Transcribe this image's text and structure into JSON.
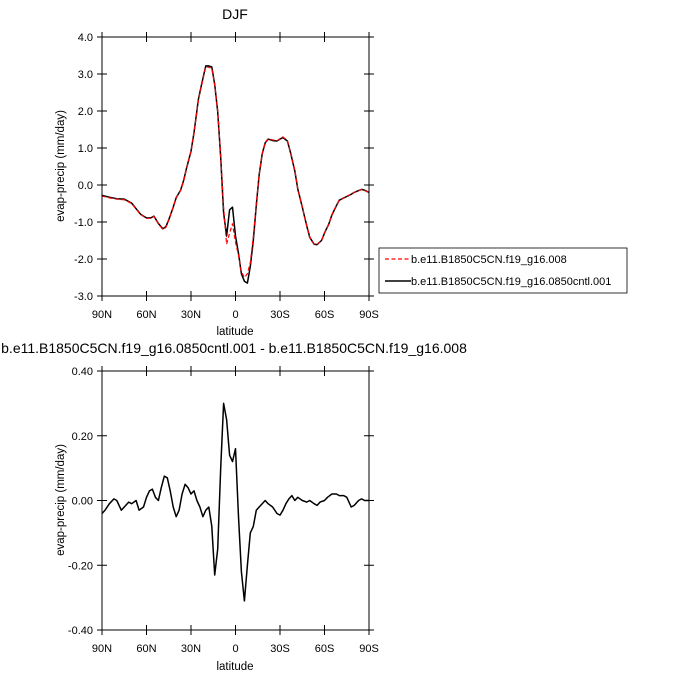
{
  "chart_data": [
    {
      "type": "line",
      "title": "DJF",
      "xlabel": "latitude",
      "ylabel": "evap-precip (mm/day)",
      "xlim": [
        90,
        -90
      ],
      "ylim": [
        -3.0,
        4.0
      ],
      "xticks": [
        90,
        60,
        30,
        0,
        -30,
        -60,
        -90
      ],
      "xtick_labels": [
        "90N",
        "60N",
        "30N",
        "0",
        "30S",
        "60S",
        "90S"
      ],
      "yticks": [
        -3.0,
        -2.0,
        -1.0,
        0.0,
        1.0,
        2.0,
        3.0,
        4.0
      ],
      "ytick_labels": [
        "-3.0",
        "-2.0",
        "-1.0",
        "0.0",
        "1.0",
        "2.0",
        "3.0",
        "4.0"
      ],
      "legend_position": "right",
      "series": [
        {
          "name": "b.e11.B1850C5CN.f19_g16.008",
          "color": "#ff0000",
          "dash": "dashed",
          "x": [
            90,
            85,
            80,
            75,
            70,
            67,
            64,
            62,
            60,
            57,
            55,
            52,
            49,
            47,
            45,
            42,
            40,
            37,
            35,
            33,
            30,
            28,
            25,
            22,
            20,
            18,
            16,
            14,
            12,
            10,
            8,
            6,
            4,
            2,
            0,
            -2,
            -4,
            -6,
            -8,
            -10,
            -12,
            -14,
            -16,
            -18,
            -20,
            -22,
            -25,
            -28,
            -30,
            -32,
            -35,
            -37,
            -40,
            -42,
            -45,
            -48,
            -50,
            -53,
            -55,
            -58,
            -60,
            -63,
            -65,
            -68,
            -70,
            -73,
            -75,
            -78,
            -80,
            -83,
            -85,
            -87,
            -90
          ],
          "y": [
            -0.3,
            -0.35,
            -0.38,
            -0.4,
            -0.5,
            -0.65,
            -0.8,
            -0.85,
            -0.9,
            -0.9,
            -0.85,
            -1.05,
            -1.2,
            -1.15,
            -0.95,
            -0.6,
            -0.35,
            -0.15,
            0.1,
            0.45,
            0.9,
            1.4,
            2.3,
            2.85,
            3.2,
            3.18,
            3.15,
            2.7,
            2.0,
            0.8,
            -0.6,
            -1.6,
            -1.3,
            -1.05,
            -1.55,
            -1.9,
            -2.35,
            -2.5,
            -2.4,
            -2.1,
            -1.4,
            -0.5,
            0.3,
            0.85,
            1.15,
            1.25,
            1.22,
            1.2,
            1.25,
            1.3,
            1.2,
            0.9,
            0.4,
            -0.1,
            -0.6,
            -1.1,
            -1.4,
            -1.6,
            -1.6,
            -1.5,
            -1.3,
            -1.05,
            -0.8,
            -0.55,
            -0.4,
            -0.35,
            -0.3,
            -0.25,
            -0.2,
            -0.15,
            -0.12,
            -0.15,
            -0.2
          ]
        },
        {
          "name": "b.e11.B1850C5CN.f19_g16.0850cntl.001",
          "color": "#000000",
          "dash": "solid",
          "x": [
            90,
            85,
            80,
            75,
            70,
            67,
            64,
            62,
            60,
            57,
            55,
            52,
            49,
            47,
            45,
            42,
            40,
            37,
            35,
            33,
            30,
            28,
            25,
            22,
            20,
            18,
            16,
            14,
            12,
            10,
            8,
            6,
            4,
            2,
            0,
            -2,
            -4,
            -6,
            -8,
            -10,
            -12,
            -14,
            -16,
            -18,
            -20,
            -22,
            -25,
            -28,
            -30,
            -32,
            -35,
            -37,
            -40,
            -42,
            -45,
            -48,
            -50,
            -53,
            -55,
            -58,
            -60,
            -63,
            -65,
            -68,
            -70,
            -73,
            -75,
            -78,
            -80,
            -83,
            -85,
            -87,
            -90
          ],
          "y": [
            -0.28,
            -0.33,
            -0.37,
            -0.38,
            -0.49,
            -0.64,
            -0.79,
            -0.84,
            -0.89,
            -0.89,
            -0.84,
            -1.04,
            -1.18,
            -1.13,
            -0.94,
            -0.6,
            -0.34,
            -0.14,
            0.12,
            0.46,
            0.91,
            1.41,
            2.32,
            2.88,
            3.22,
            3.22,
            3.19,
            2.72,
            1.98,
            0.75,
            -0.75,
            -1.38,
            -0.67,
            -0.6,
            -1.38,
            -1.85,
            -2.4,
            -2.6,
            -2.65,
            -2.2,
            -1.5,
            -0.55,
            0.28,
            0.84,
            1.14,
            1.24,
            1.2,
            1.19,
            1.24,
            1.28,
            1.19,
            0.89,
            0.38,
            -0.11,
            -0.6,
            -1.1,
            -1.41,
            -1.6,
            -1.61,
            -1.5,
            -1.3,
            -1.05,
            -0.81,
            -0.56,
            -0.41,
            -0.35,
            -0.31,
            -0.25,
            -0.2,
            -0.15,
            -0.12,
            -0.14,
            -0.2
          ]
        }
      ]
    },
    {
      "type": "line",
      "title": "b.e11.B1850C5CN.f19_g16.0850cntl.001 - b.e11.B1850C5CN.f19_g16.008",
      "xlabel": "latitude",
      "ylabel": "evap-precip (mm/day)",
      "xlim": [
        90,
        -90
      ],
      "ylim": [
        -0.4,
        0.4
      ],
      "xticks": [
        90,
        60,
        30,
        0,
        -30,
        -60,
        -90
      ],
      "xtick_labels": [
        "90N",
        "60N",
        "30N",
        "0",
        "30S",
        "60S",
        "90S"
      ],
      "yticks": [
        -0.4,
        -0.2,
        0.0,
        0.2,
        0.4
      ],
      "ytick_labels": [
        "-0.40",
        "-0.20",
        "0.00",
        "0.20",
        "0.40"
      ],
      "series": [
        {
          "color": "#000000",
          "dash": "solid",
          "x": [
            90,
            88,
            85,
            82,
            80,
            77,
            75,
            72,
            70,
            67,
            65,
            62,
            60,
            58,
            56,
            54,
            52,
            50,
            48,
            46,
            44,
            42,
            40,
            38,
            36,
            34,
            32,
            30,
            28,
            26,
            24,
            22,
            20,
            18,
            16,
            14,
            12,
            10,
            8,
            6,
            4,
            2,
            0,
            -2,
            -4,
            -6,
            -8,
            -10,
            -12,
            -14,
            -16,
            -18,
            -20,
            -22,
            -25,
            -28,
            -30,
            -32,
            -34,
            -36,
            -38,
            -40,
            -42,
            -45,
            -48,
            -50,
            -53,
            -55,
            -57,
            -60,
            -62,
            -65,
            -68,
            -70,
            -73,
            -75,
            -78,
            -80,
            -83,
            -85,
            -87,
            -90
          ],
          "y": [
            -0.04,
            -0.03,
            -0.01,
            0.005,
            0.0,
            -0.03,
            -0.02,
            -0.005,
            -0.01,
            0.0,
            -0.03,
            -0.02,
            0.01,
            0.03,
            0.035,
            0.01,
            0.0,
            0.04,
            0.075,
            0.07,
            0.03,
            -0.02,
            -0.05,
            -0.03,
            0.02,
            0.05,
            0.04,
            0.02,
            0.03,
            0.0,
            -0.02,
            -0.05,
            -0.03,
            -0.02,
            -0.08,
            -0.23,
            -0.15,
            0.1,
            0.3,
            0.25,
            0.14,
            0.12,
            0.16,
            -0.05,
            -0.22,
            -0.31,
            -0.2,
            -0.1,
            -0.08,
            -0.03,
            -0.02,
            -0.01,
            0.0,
            -0.01,
            -0.02,
            -0.04,
            -0.045,
            -0.03,
            -0.01,
            0.005,
            0.015,
            0.0,
            0.01,
            0.0,
            -0.005,
            0.0,
            -0.01,
            -0.015,
            -0.005,
            0.0,
            0.01,
            0.02,
            0.02,
            0.015,
            0.015,
            0.01,
            -0.02,
            -0.015,
            0.0,
            0.005,
            0.0,
            0.0
          ]
        }
      ]
    }
  ]
}
